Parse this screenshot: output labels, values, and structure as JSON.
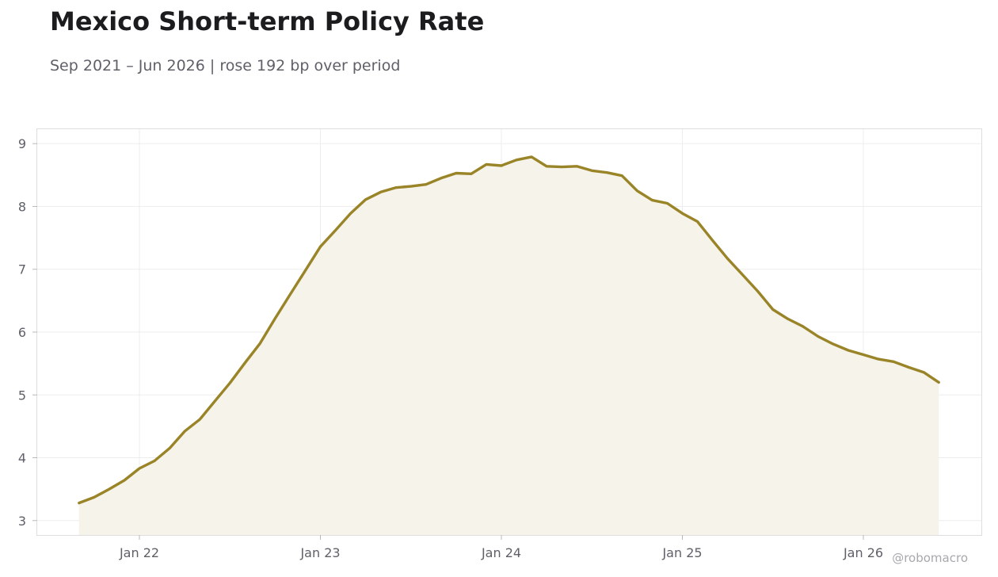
{
  "title": "Mexico Short-term Policy Rate",
  "subtitle": "Sep 2021 – Jun 2026 | rose 192 bp over period",
  "watermark": "@robomacro",
  "colors": {
    "line": "#9a8428",
    "fill": "#f6f3eb",
    "grid": "#ededed",
    "frame": "#dedede"
  },
  "chart_data": {
    "type": "area",
    "title": "Mexico Short-term Policy Rate",
    "subtitle": "Sep 2021 – Jun 2026 | rose 192 bp over period",
    "xlabel": "",
    "ylabel": "",
    "x_start": "2021-09",
    "x_end": "2026-06",
    "x_ticks": [
      "Jan 22",
      "Jan 23",
      "Jan 24",
      "Jan 25",
      "Jan 26"
    ],
    "y_ticks": [
      3,
      4,
      5,
      6,
      7,
      8,
      9
    ],
    "ylim": [
      2.77,
      9.23
    ],
    "grid": true,
    "series": [
      {
        "x": [
          "2021-09",
          "2021-10",
          "2021-11",
          "2021-12",
          "2022-01",
          "2022-02",
          "2022-03",
          "2022-04",
          "2022-05",
          "2022-06",
          "2022-07",
          "2022-08",
          "2022-09",
          "2022-10",
          "2022-11",
          "2022-12",
          "2023-01",
          "2023-02",
          "2023-03",
          "2023-04",
          "2023-05",
          "2023-06",
          "2023-07",
          "2023-08",
          "2023-09",
          "2023-10",
          "2023-11",
          "2023-12",
          "2024-01",
          "2024-02",
          "2024-03",
          "2024-04",
          "2024-05",
          "2024-06",
          "2024-07",
          "2024-08",
          "2024-09",
          "2024-10",
          "2024-11",
          "2024-12",
          "2025-01",
          "2025-02",
          "2025-03",
          "2025-04",
          "2025-05",
          "2025-06",
          "2025-07",
          "2025-08",
          "2025-09",
          "2025-10",
          "2025-11",
          "2025-12",
          "2026-01",
          "2026-02",
          "2026-03",
          "2026-04",
          "2026-05",
          "2026-06"
        ],
        "values": [
          3.28,
          3.37,
          3.5,
          3.64,
          3.83,
          3.95,
          4.15,
          4.42,
          4.61,
          4.9,
          5.19,
          5.51,
          5.82,
          6.22,
          6.6,
          6.98,
          7.36,
          7.62,
          7.89,
          8.11,
          8.23,
          8.3,
          8.32,
          8.35,
          8.45,
          8.53,
          8.52,
          8.67,
          8.65,
          8.74,
          8.79,
          8.64,
          8.63,
          8.64,
          8.57,
          8.54,
          8.49,
          8.25,
          8.1,
          8.05,
          7.89,
          7.76,
          7.46,
          7.17,
          6.91,
          6.65,
          6.36,
          6.21,
          6.09,
          5.93,
          5.81,
          5.71,
          5.64,
          5.57,
          5.53,
          5.44,
          5.36,
          5.2
        ]
      }
    ]
  }
}
